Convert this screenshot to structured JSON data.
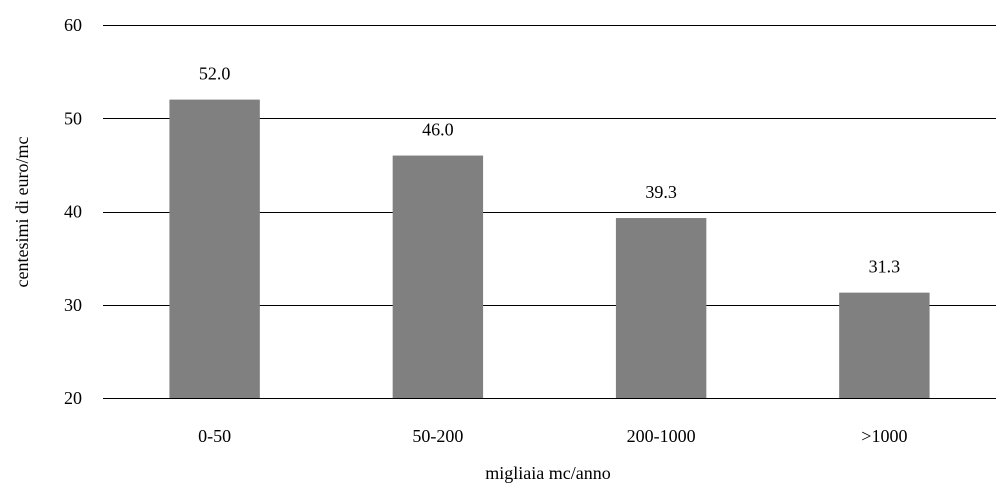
{
  "chart_data": {
    "type": "bar",
    "categories": [
      "0-50",
      "50-200",
      "200-1000",
      ">1000"
    ],
    "values": [
      52.0,
      46.0,
      39.3,
      31.3
    ],
    "data_labels": [
      "52.0",
      "46.0",
      "39.3",
      "31.3"
    ],
    "y_ticks": [
      20,
      30,
      40,
      50,
      60
    ],
    "ylim": [
      20,
      60
    ],
    "title": "",
    "xlabel": "migliaia mc/anno",
    "ylabel": "centesimi di euro/mc",
    "grid": "horizontal",
    "legend": "none",
    "bar_color": "#808080"
  }
}
